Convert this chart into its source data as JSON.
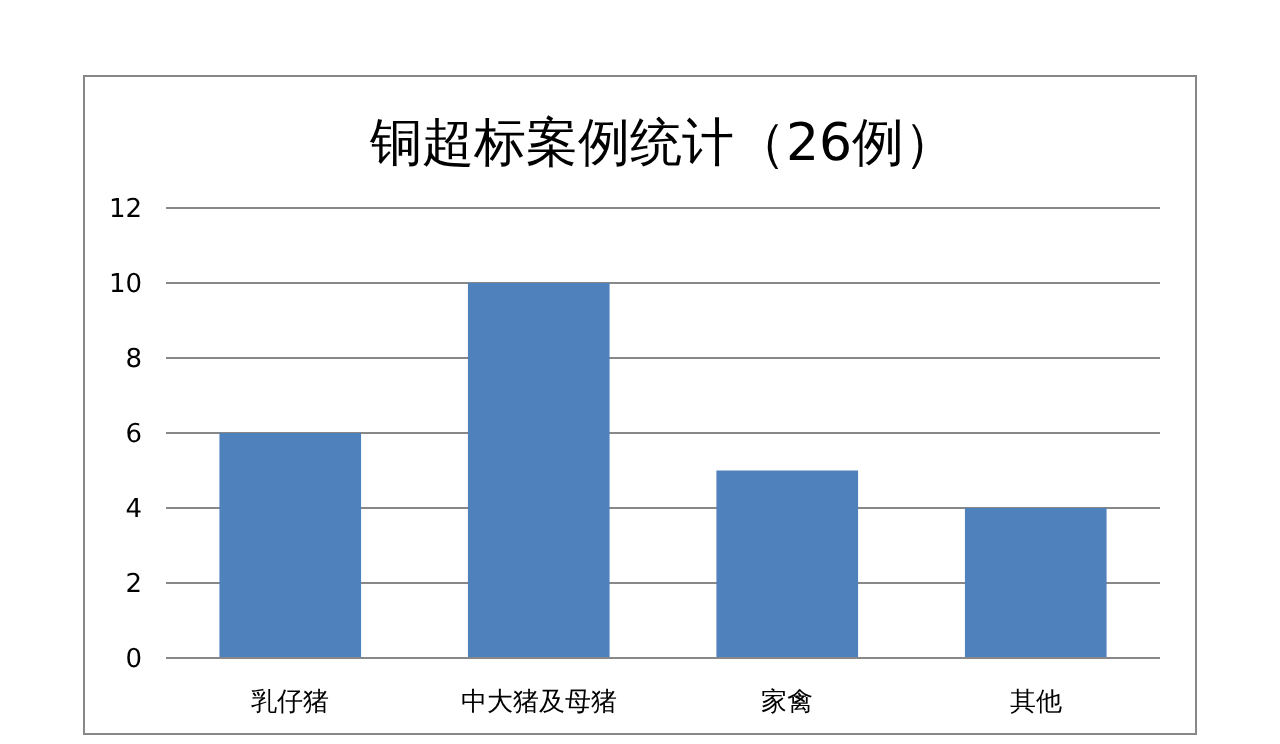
{
  "chart_data": {
    "type": "bar",
    "title": "铜超标案例统计（26例）",
    "categories": [
      "乳仔猪",
      "中大猪及母猪",
      "家禽",
      "其他"
    ],
    "values": [
      6,
      10,
      5,
      4
    ],
    "color": "#4f81bd",
    "ylim": [
      0,
      12
    ],
    "yticks": [
      0,
      2,
      4,
      6,
      8,
      10,
      12
    ],
    "grid": "y"
  }
}
